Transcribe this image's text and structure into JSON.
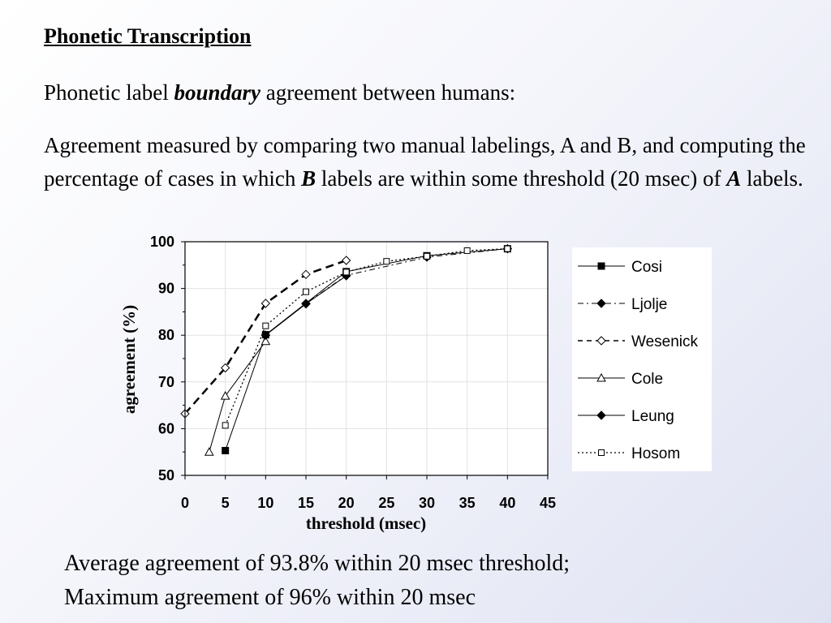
{
  "slide": {
    "title": "Phonetic Transcription",
    "line1": {
      "pre": "Phonetic label ",
      "emph": "boundary",
      "post": " agreement between humans:"
    },
    "para2": {
      "t1": "Agreement measured by comparing two manual labelings, A and B, and computing the percentage of cases in which ",
      "b": "B",
      "t2": " labels are within some threshold (20 msec) of ",
      "a": "A",
      "t3": " labels."
    },
    "bottom": {
      "line1": "Average agreement of 93.8% within 20 msec threshold;",
      "line2": "Maximum agreement of 96% within 20 msec"
    }
  },
  "chart_data": {
    "type": "line",
    "xlabel": "threshold (msec)",
    "ylabel": "agreement (%)",
    "xlim": [
      0,
      45
    ],
    "ylim": [
      50,
      100
    ],
    "xticks": [
      "0",
      "5",
      "10",
      "15",
      "20",
      "25",
      "30",
      "35",
      "40",
      "45"
    ],
    "yticks": [
      "50",
      "60",
      "70",
      "80",
      "90",
      "100"
    ],
    "grid": true,
    "legend_position": "right",
    "series": [
      {
        "name": "Cosi",
        "marker": "square-filled",
        "dash": "solid",
        "width": 1,
        "x": [
          5,
          10,
          20,
          30,
          40
        ],
        "y": [
          55.3,
          80.1,
          93.6,
          97.0,
          98.5
        ]
      },
      {
        "name": "Ljolje",
        "marker": "diamond-filled",
        "dash": "dashdot",
        "width": 1,
        "x": [
          10,
          15,
          20,
          30,
          40
        ],
        "y": [
          80.0,
          86.8,
          92.8,
          96.7,
          98.5
        ]
      },
      {
        "name": "Wesenick",
        "marker": "diamond-open",
        "dash": "dashed",
        "width": 2.5,
        "x": [
          0,
          5,
          10,
          15,
          20
        ],
        "y": [
          63.2,
          73.0,
          86.8,
          93.0,
          96.0
        ]
      },
      {
        "name": "Cole",
        "marker": "triangle-open",
        "dash": "solid",
        "width": 1,
        "x": [
          3,
          5,
          10
        ],
        "y": [
          55.0,
          67.0,
          78.7
        ]
      },
      {
        "name": "Leung",
        "marker": "diamond-filled",
        "dash": "solid",
        "width": 1,
        "x": [
          10,
          15,
          20
        ],
        "y": [
          80.0,
          86.7,
          92.7
        ]
      },
      {
        "name": "Hosom",
        "marker": "square-open",
        "dash": "dotted",
        "width": 1.3,
        "x": [
          5,
          10,
          15,
          20,
          25,
          30,
          35,
          40
        ],
        "y": [
          60.7,
          82.0,
          89.3,
          93.5,
          95.8,
          96.9,
          98.1,
          98.5
        ]
      }
    ]
  }
}
